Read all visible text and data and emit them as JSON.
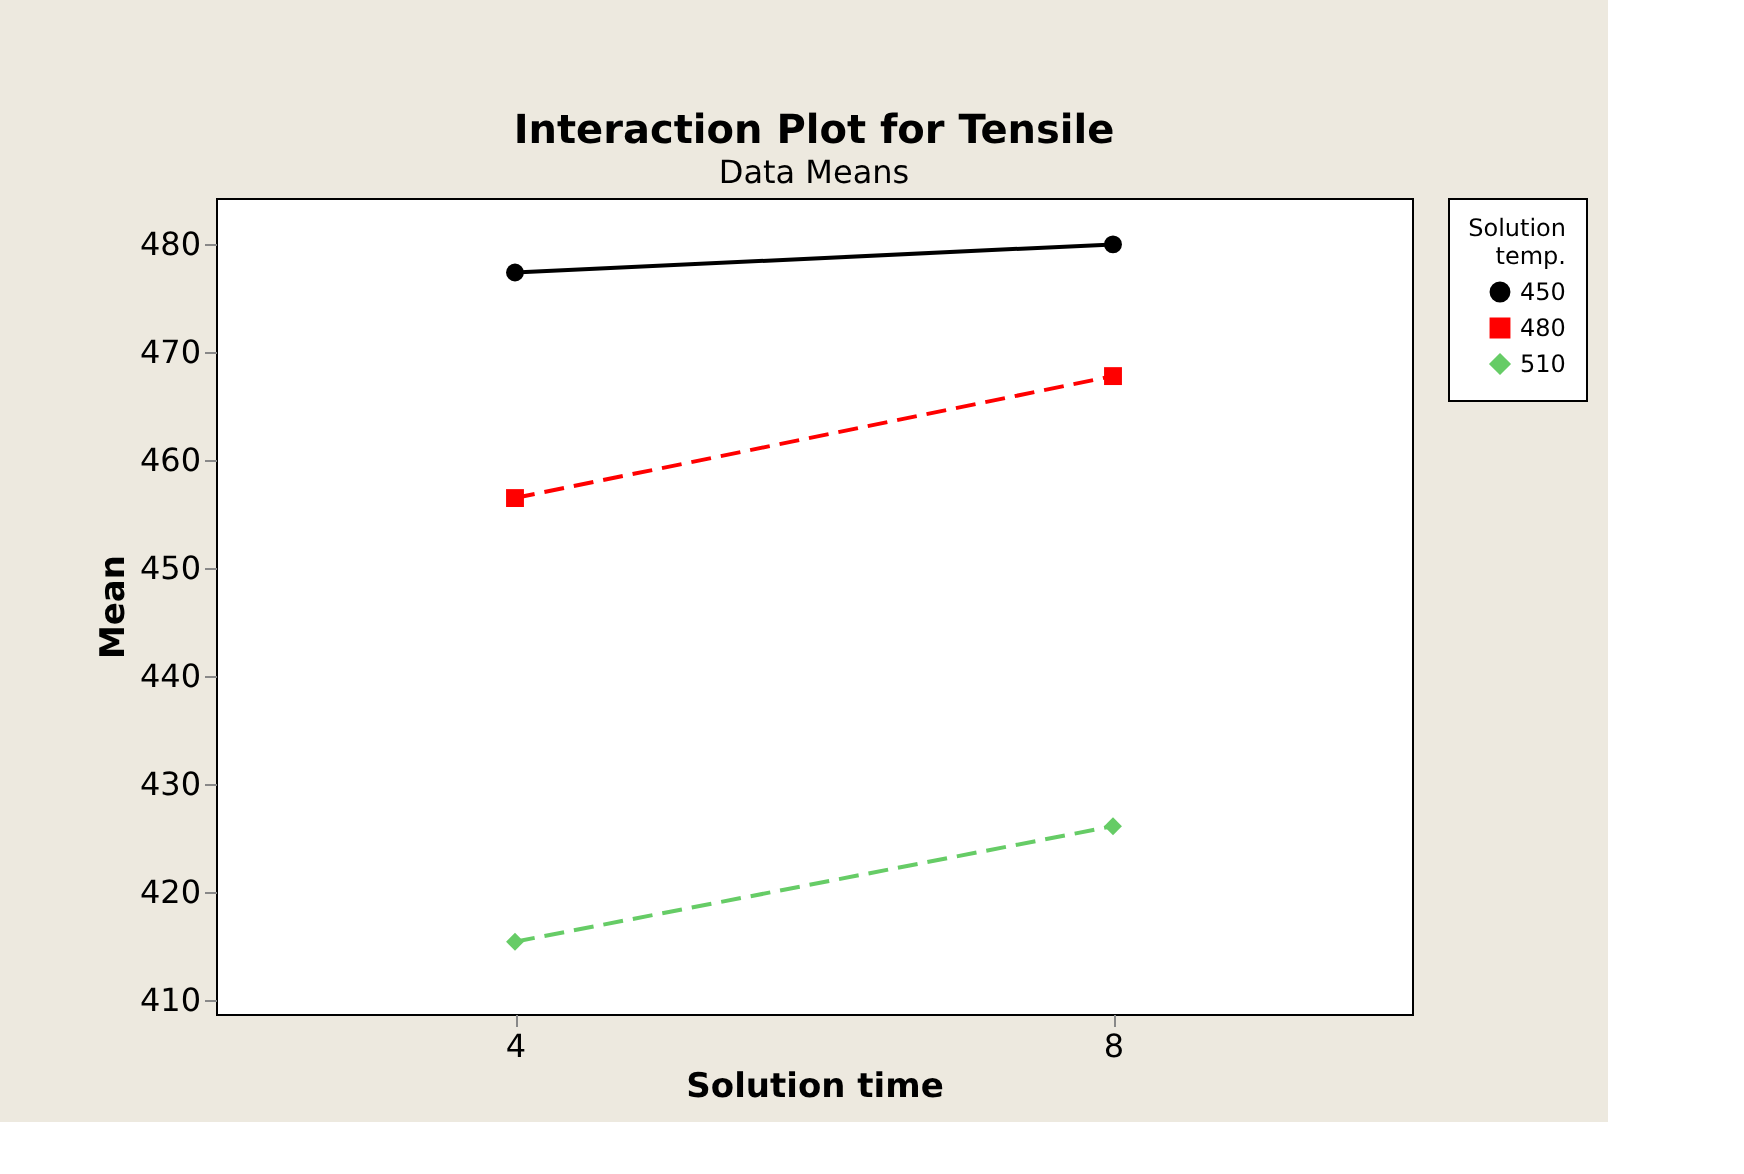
{
  "chart_data": {
    "type": "line",
    "title": "Interaction Plot for Tensile",
    "subtitle": "Data Means",
    "xlabel": "Solution time",
    "ylabel": "Mean",
    "legend_title": "Solution temp.",
    "categories": [
      "4",
      "8"
    ],
    "series": [
      {
        "name": "450",
        "color": "#000000",
        "values": [
          477.4,
          480.0
        ],
        "marker": "circle",
        "line_style": "solid"
      },
      {
        "name": "480",
        "color": "#ff0000",
        "values": [
          456.5,
          467.8
        ],
        "marker": "square",
        "line_style": "dashed"
      },
      {
        "name": "510",
        "color": "#66cc66",
        "values": [
          415.4,
          426.1
        ],
        "marker": "diamond",
        "line_style": "dashed"
      }
    ],
    "ylim": [
      408.7,
      484.3
    ],
    "yticks": [
      410,
      420,
      430,
      440,
      450,
      460,
      470,
      480
    ],
    "grid": false,
    "legend": "right"
  }
}
